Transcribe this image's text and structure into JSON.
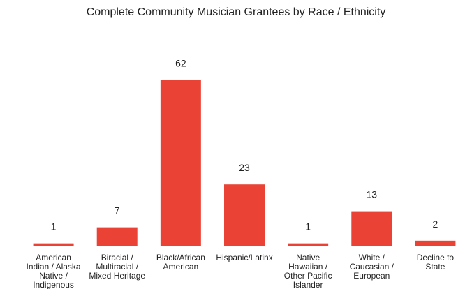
{
  "chart_data": {
    "type": "bar",
    "title": "Complete Community Musician Grantees by Race / Ethnicity",
    "categories": [
      [
        "American",
        "Indian / Alaska",
        "Native /",
        "Indigenous"
      ],
      [
        "Biracial /",
        "Multiracial /",
        "Mixed Heritage"
      ],
      [
        "Black/African",
        "American"
      ],
      [
        "Hispanic/Latinx"
      ],
      [
        "Native",
        "Hawaiian /",
        "Other Pacific",
        "Islander"
      ],
      [
        "White /",
        "Caucasian /",
        "European"
      ],
      [
        "Decline to",
        "State"
      ]
    ],
    "values": [
      1,
      7,
      62,
      23,
      1,
      13,
      2
    ],
    "bar_color": "#ea4335",
    "axis_color": "#333333",
    "xlabel": "",
    "ylabel": "",
    "ylim": [
      0,
      62
    ],
    "grid": false,
    "legend": "none"
  }
}
